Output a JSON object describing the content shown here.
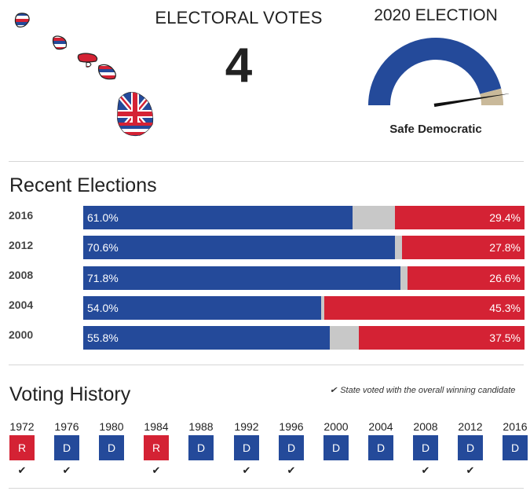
{
  "header": {
    "electoral_votes_label": "ELECTORAL VOTES",
    "electoral_votes_value": "4",
    "election_label": "2020 ELECTION",
    "rating": "Safe Democratic",
    "rating_gauge_level": 0.95,
    "colors": {
      "democrat": "#244a9a",
      "republican": "#d42234",
      "other": "#c8c8c8",
      "rating_tan": "#c9b99a"
    }
  },
  "recent": {
    "title": "Recent Elections",
    "elections": [
      {
        "year": "2016",
        "dem_pct": 61.0,
        "rep_pct": 29.4,
        "dem_label": "61.0%",
        "rep_label": "29.4%"
      },
      {
        "year": "2012",
        "dem_pct": 70.6,
        "rep_pct": 27.8,
        "dem_label": "70.6%",
        "rep_label": "27.8%"
      },
      {
        "year": "2008",
        "dem_pct": 71.8,
        "rep_pct": 26.6,
        "dem_label": "71.8%",
        "rep_label": "26.6%"
      },
      {
        "year": "2004",
        "dem_pct": 54.0,
        "rep_pct": 45.3,
        "dem_label": "54.0%",
        "rep_label": "45.3%"
      },
      {
        "year": "2000",
        "dem_pct": 55.8,
        "rep_pct": 37.5,
        "dem_label": "55.8%",
        "rep_label": "37.5%"
      }
    ]
  },
  "history": {
    "title": "Voting History",
    "legend": "State voted with the overall winning candidate",
    "check_glyph": "✔",
    "items": [
      {
        "year": "1972",
        "party": "R",
        "winner": true
      },
      {
        "year": "1976",
        "party": "D",
        "winner": true
      },
      {
        "year": "1980",
        "party": "D",
        "winner": false
      },
      {
        "year": "1984",
        "party": "R",
        "winner": true
      },
      {
        "year": "1988",
        "party": "D",
        "winner": false
      },
      {
        "year": "1992",
        "party": "D",
        "winner": true
      },
      {
        "year": "1996",
        "party": "D",
        "winner": true
      },
      {
        "year": "2000",
        "party": "D",
        "winner": false
      },
      {
        "year": "2004",
        "party": "D",
        "winner": false
      },
      {
        "year": "2008",
        "party": "D",
        "winner": true
      },
      {
        "year": "2012",
        "party": "D",
        "winner": true
      },
      {
        "year": "2016",
        "party": "D",
        "winner": false
      }
    ]
  }
}
